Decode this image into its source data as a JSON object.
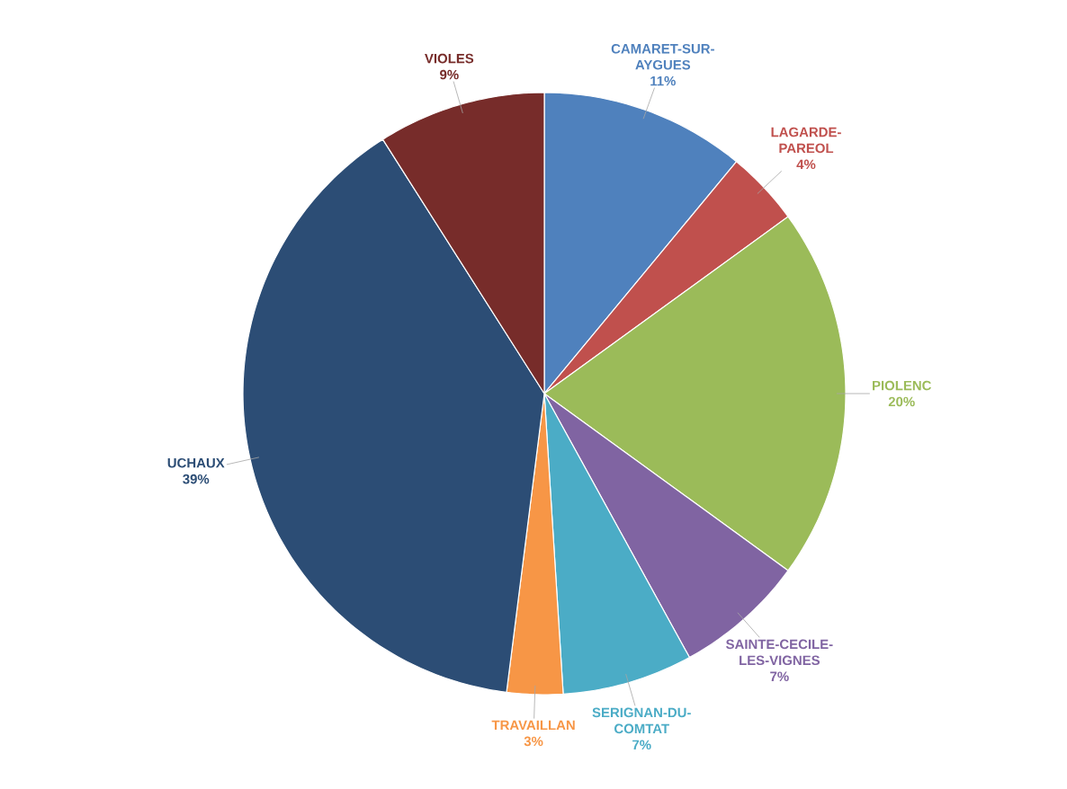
{
  "chart_data": {
    "type": "pie",
    "categories": [
      "CAMARET-SUR-AYGUES",
      "LAGARDE-PAREOL",
      "PIOLENC",
      "SAINTE-CECILE-LES-VIGNES",
      "SERIGNAN-DU-COMTAT",
      "TRAVAILLAN",
      "UCHAUX",
      "VIOLES"
    ],
    "values": [
      11,
      4,
      20,
      7,
      7,
      3,
      39,
      9
    ],
    "value_labels": [
      "11%",
      "4%",
      "20%",
      "7%",
      "7%",
      "3%",
      "39%",
      "9%"
    ],
    "colors": [
      "#4f81bd",
      "#c0504d",
      "#9bbb59",
      "#8064a2",
      "#4bacc6",
      "#f79646",
      "#2c4d75",
      "#772c2a"
    ],
    "legend": false
  }
}
